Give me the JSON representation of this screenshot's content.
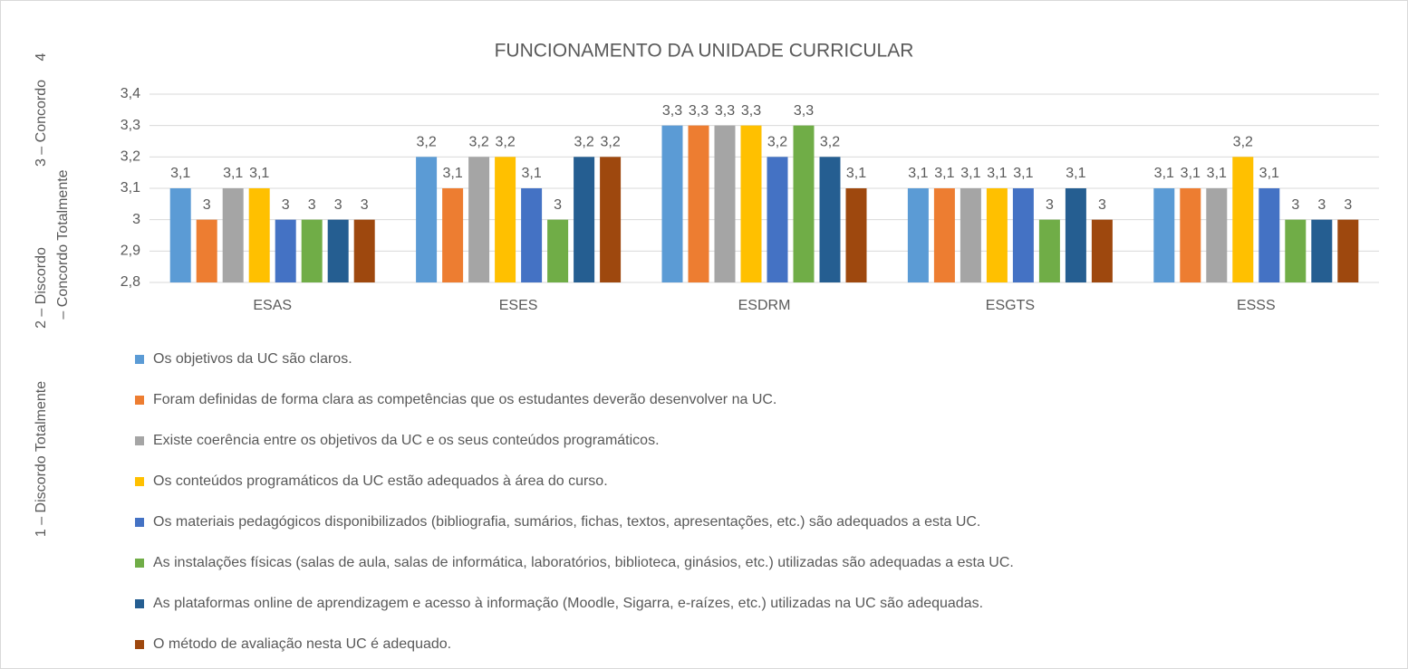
{
  "chart_data": {
    "type": "bar",
    "title": "FUNCIONAMENTO DA UNIDADE CURRICULAR",
    "ylabel": [
      "1 – Discordo Totalmente",
      "2 – Discordo",
      "3 – Concordo",
      "4",
      "– Concordo Totalmente"
    ],
    "categories": [
      "ESAS",
      "ESES",
      "ESDRM",
      "ESGTS",
      "ESSS"
    ],
    "ylim": [
      2.8,
      3.4
    ],
    "yticks": [
      {
        "value": 2.8,
        "label": "2,8"
      },
      {
        "value": 2.9,
        "label": "2,9"
      },
      3,
      {
        "value": 3.1,
        "label": "3,1"
      },
      {
        "value": 3.2,
        "label": "3,2"
      },
      {
        "value": 3.3,
        "label": "3,3"
      },
      {
        "value": 3.4,
        "label": "3,4"
      }
    ],
    "grid": true,
    "legend": "bottom",
    "series": [
      {
        "name": "Os objetivos da UC são claros.",
        "color": "#5b9bd5",
        "values": [
          3.1,
          3.2,
          3.3,
          3.1,
          3.1
        ],
        "value_labels": [
          "3,1",
          "3,2",
          "3,3",
          "3,1",
          "3,1"
        ]
      },
      {
        "name": "Foram definidas de forma clara as competências que os estudantes deverão desenvolver na UC.",
        "color": "#ed7d31",
        "values": [
          3,
          3.1,
          3.3,
          3.1,
          3.1
        ],
        "value_labels": [
          "3",
          "3,1",
          "3,3",
          "3,1",
          "3,1"
        ]
      },
      {
        "name": "Existe coerência entre os objetivos da UC e os seus conteúdos programáticos.",
        "color": "#a5a5a5",
        "values": [
          3.1,
          3.2,
          3.3,
          3.1,
          3.1
        ],
        "value_labels": [
          "3,1",
          "3,2",
          "3,3",
          "3,1",
          "3,1"
        ]
      },
      {
        "name": "Os conteúdos programáticos da UC estão adequados à área do curso.",
        "color": "#ffc000",
        "values": [
          3.1,
          3.2,
          3.3,
          3.1,
          3.2
        ],
        "value_labels": [
          "3,1",
          "3,2",
          "3,3",
          "3,1",
          "3,2"
        ]
      },
      {
        "name": "Os materiais pedagógicos disponibilizados (bibliografia, sumários, fichas, textos, apresentações, etc.) são adequados a esta UC.",
        "color": "#4472c4",
        "values": [
          3,
          3.1,
          3.2,
          3.1,
          3.1
        ],
        "value_labels": [
          "3",
          "3,1",
          "3,2",
          "3,1",
          "3,1"
        ]
      },
      {
        "name": "As instalações físicas (salas de aula, salas de informática, laboratórios, biblioteca, ginásios, etc.) utilizadas são adequadas a esta UC.",
        "color": "#70ad47",
        "values": [
          3,
          3,
          3.3,
          3,
          3
        ],
        "value_labels": [
          "3",
          "3",
          "3,3",
          "3",
          "3"
        ]
      },
      {
        "name": "As plataformas online de aprendizagem e acesso à informação (Moodle, Sigarra, e-raízes, etc.) utilizadas na UC são adequadas.",
        "color": "#255e91",
        "values": [
          3,
          3.2,
          3.2,
          3.1,
          3
        ],
        "value_labels": [
          "3",
          "3,2",
          "3,2",
          "3,1",
          "3"
        ]
      },
      {
        "name": "O método de avaliação nesta UC é adequado.",
        "color": "#9e480e",
        "values": [
          3,
          3.2,
          3.1,
          3,
          3
        ],
        "value_labels": [
          "3",
          "3,2",
          "3,1",
          "3",
          "3"
        ]
      }
    ]
  }
}
